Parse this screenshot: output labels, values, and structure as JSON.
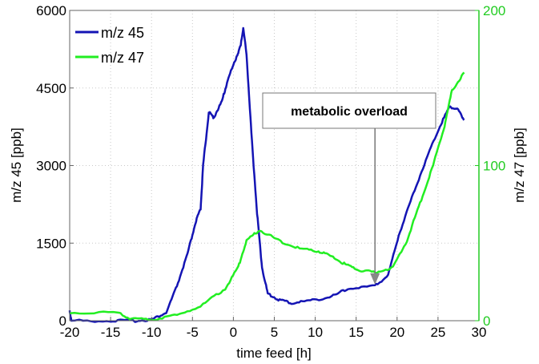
{
  "chart_data": {
    "type": "line",
    "xlabel": "time feed [h]",
    "ylabel": "m/z 45 [ppb]",
    "y2label": "m/z 47 [ppb]",
    "xlim": [
      -20,
      30
    ],
    "ylim": [
      0,
      6000
    ],
    "y2lim": [
      0,
      200
    ],
    "xticks": [
      "-20",
      "-15",
      "-10",
      "-5",
      "0",
      "5",
      "10",
      "15",
      "20",
      "25",
      "30"
    ],
    "yticks": [
      "0",
      "1500",
      "3000",
      "4500",
      "6000"
    ],
    "y2ticks": [
      "0",
      "100",
      "200"
    ],
    "grid": true,
    "legend": "top-left",
    "colors": {
      "m/z 45": "#1414b4",
      "m/z 47": "#22ee22"
    },
    "series": [
      {
        "name": "m/z 45",
        "axis": "left",
        "x": [
          -20,
          -19.8,
          -15,
          -12,
          -9.9,
          -8.2,
          -6.9,
          -5.6,
          -4.6,
          -4,
          -3.7,
          -3,
          -2.4,
          -1.4,
          -0.7,
          0.3,
          0.9,
          1.2,
          1.6,
          2.2,
          2.9,
          3.5,
          4.2,
          5.5,
          7.1,
          9.4,
          12,
          14,
          17.3,
          18.9,
          20.2,
          21.8,
          23.5,
          25.1,
          26.4,
          27.4,
          28.2
        ],
        "y": [
          200,
          0,
          0,
          0,
          25,
          155,
          670,
          1290,
          1910,
          2170,
          3000,
          4030,
          3930,
          4240,
          4650,
          5070,
          5320,
          5660,
          5170,
          3620,
          2070,
          1030,
          520,
          410,
          340,
          390,
          465,
          620,
          670,
          880,
          1650,
          2380,
          3100,
          3720,
          4140,
          4090,
          3880
        ]
      },
      {
        "name": "m/z 47",
        "axis": "right",
        "x": [
          -20,
          -14.1,
          -12.5,
          -9.9,
          -6.9,
          -3.7,
          -1,
          0.6,
          1.6,
          3.2,
          5.5,
          8.1,
          10.4,
          12,
          13.7,
          15.3,
          17.3,
          19.5,
          21.2,
          22.8,
          24.4,
          25.8,
          26.7,
          28.2
        ],
        "y": [
          5.2,
          5.2,
          0.9,
          0.9,
          3.4,
          10.3,
          20.7,
          34.5,
          51.7,
          58.6,
          51.7,
          46.5,
          44.8,
          41.4,
          36.2,
          32.8,
          31,
          34.5,
          51.7,
          75.8,
          100,
          125.8,
          148.3,
          160
        ]
      }
    ],
    "annotation": {
      "text": "metabolic overload",
      "arrow_x": 17.3,
      "arrow_y": 700
    }
  }
}
